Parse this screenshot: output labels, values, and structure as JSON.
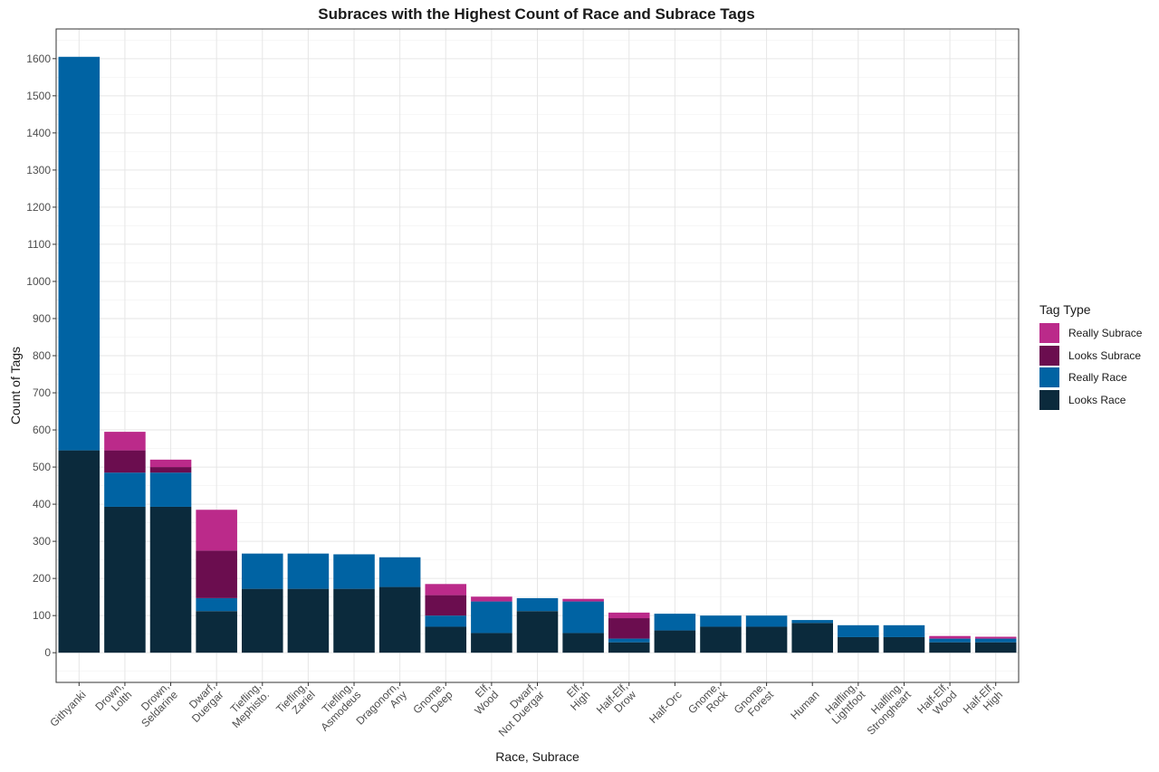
{
  "chart_data": {
    "type": "bar",
    "stacked": true,
    "title": "Subraces with the Highest Count of Race and Subrace Tags",
    "xlabel": "Race, Subrace",
    "ylabel": "Count of Tags",
    "ylim": [
      -80,
      1680
    ],
    "yticks": [
      0,
      100,
      200,
      300,
      400,
      500,
      600,
      700,
      800,
      900,
      1000,
      1100,
      1200,
      1300,
      1400,
      1500,
      1600
    ],
    "grid": true,
    "legend_title": "Tag Type",
    "legend_position": "right",
    "categories": [
      [
        "Githyanki"
      ],
      [
        "Drown,",
        "Lolth"
      ],
      [
        "Drown,",
        "Seldarine"
      ],
      [
        "Dwarf,",
        "Duergar"
      ],
      [
        "Tiefling,",
        "Mephisto."
      ],
      [
        "Tiefling,",
        "Zariel"
      ],
      [
        "Tiefling,",
        "Asmodeus"
      ],
      [
        "Dragonorn,",
        "Any"
      ],
      [
        "Gnome,",
        "Deep"
      ],
      [
        "Elf,",
        "Wood"
      ],
      [
        "Dwarf,",
        "Not Duergar"
      ],
      [
        "Elf,",
        "High"
      ],
      [
        "Half-Elf,",
        "Drow"
      ],
      [
        "Half-Orc"
      ],
      [
        "Gnome,",
        "Rock"
      ],
      [
        "Gnome,",
        "Forest"
      ],
      [
        "Human"
      ],
      [
        "Halfling,",
        "Lightfoot"
      ],
      [
        "Halfling,",
        "Strongheart"
      ],
      [
        "Half-Elf,",
        "Wood"
      ],
      [
        "Half-Elf,",
        "High"
      ]
    ],
    "series": [
      {
        "name": "Looks Race",
        "color": "#0b2a3c",
        "values": [
          545,
          393,
          393,
          112,
          172,
          172,
          172,
          177,
          70,
          53,
          112,
          53,
          28,
          60,
          70,
          70,
          80,
          42,
          42,
          28,
          28
        ]
      },
      {
        "name": "Really Race",
        "color": "#0063a3",
        "values": [
          1060,
          92,
          92,
          35,
          95,
          95,
          93,
          80,
          30,
          85,
          35,
          85,
          10,
          45,
          30,
          30,
          8,
          32,
          32,
          10,
          10
        ]
      },
      {
        "name": "Looks Subrace",
        "color": "#6b0d4f",
        "values": [
          0,
          60,
          15,
          128,
          0,
          0,
          0,
          0,
          55,
          0,
          0,
          0,
          55,
          0,
          0,
          0,
          0,
          0,
          0,
          0,
          0
        ]
      },
      {
        "name": "Really Subrace",
        "color": "#bb2a8a",
        "values": [
          0,
          50,
          20,
          110,
          0,
          0,
          0,
          0,
          30,
          13,
          0,
          7,
          15,
          0,
          0,
          0,
          0,
          0,
          0,
          7,
          5
        ]
      }
    ]
  }
}
